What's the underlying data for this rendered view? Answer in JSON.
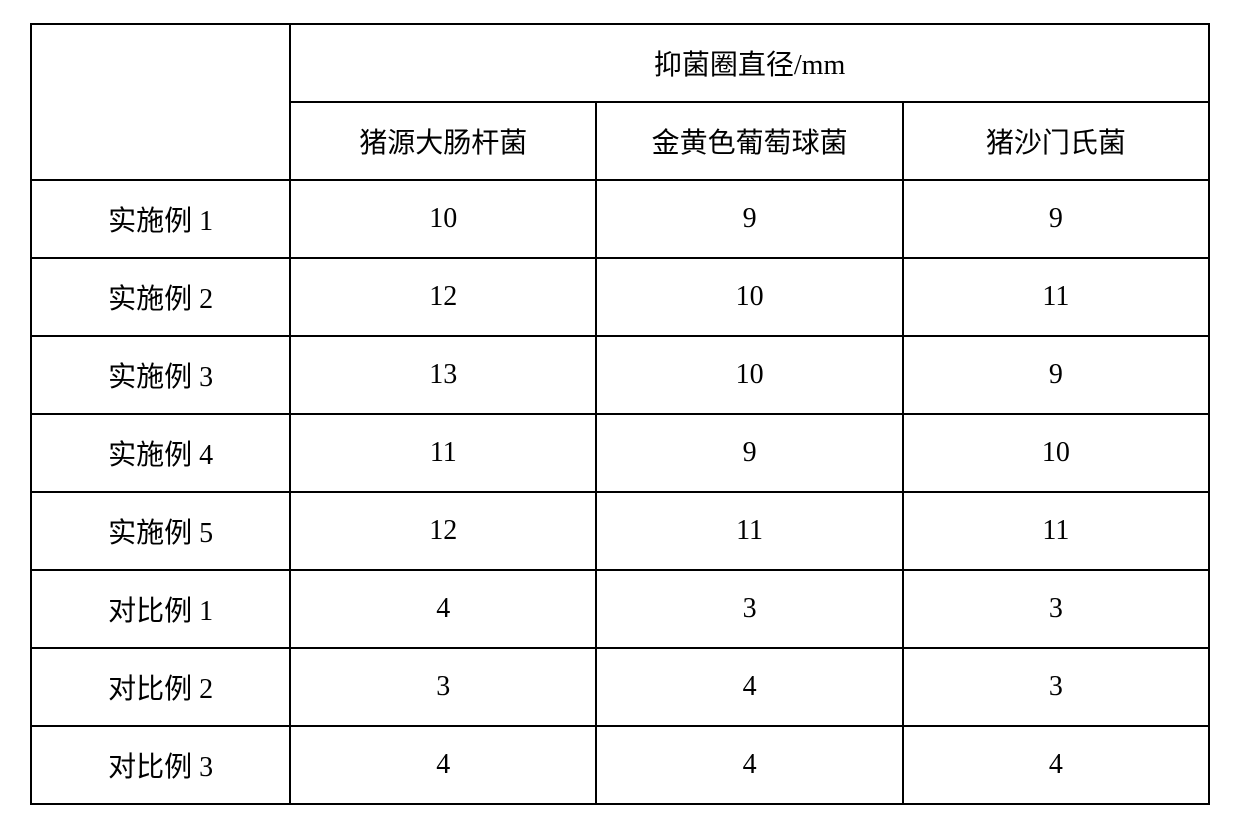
{
  "table": {
    "type": "table",
    "header_main": "抑菌圈直径/mm",
    "columns": [
      "猪源大肠杆菌",
      "金黄色葡萄球菌",
      "猪沙门氏菌"
    ],
    "rows": [
      {
        "label": "实施例 1",
        "values": [
          "10",
          "9",
          "9"
        ]
      },
      {
        "label": "实施例 2",
        "values": [
          "12",
          "10",
          "11"
        ]
      },
      {
        "label": "实施例 3",
        "values": [
          "13",
          "10",
          "9"
        ]
      },
      {
        "label": "实施例 4",
        "values": [
          "11",
          "9",
          "10"
        ]
      },
      {
        "label": "实施例 5",
        "values": [
          "12",
          "11",
          "11"
        ]
      },
      {
        "label": "对比例 1",
        "values": [
          "4",
          "3",
          "3"
        ]
      },
      {
        "label": "对比例 2",
        "values": [
          "3",
          "4",
          "3"
        ]
      },
      {
        "label": "对比例 3",
        "values": [
          "4",
          "4",
          "4"
        ]
      }
    ],
    "border_color": "#000000",
    "background_color": "#ffffff",
    "text_color": "#000000",
    "font_size": 28,
    "cell_padding": 18,
    "border_width": 2
  }
}
